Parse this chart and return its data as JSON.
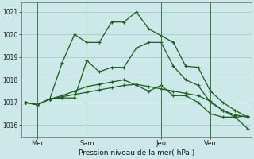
{
  "background_color": "#cce8e8",
  "grid_color": "#aacccc",
  "line_color": "#1a5c1a",
  "title": "Pression niveau de la mer( hPa )",
  "ylim": [
    1015.5,
    1021.4
  ],
  "yticks": [
    1016,
    1017,
    1018,
    1019,
    1020,
    1021
  ],
  "day_labels": [
    "Mer",
    "Sam",
    "Jeu",
    "Ven"
  ],
  "day_positions": [
    1,
    5,
    11,
    15
  ],
  "vline_positions": [
    1,
    5,
    11,
    15
  ],
  "n_points": 19,
  "series": [
    [
      1017.0,
      1016.9,
      1017.15,
      1018.75,
      1020.0,
      1019.65,
      1019.65,
      1020.55,
      1020.55,
      1021.0,
      1020.25,
      1019.95,
      1019.65,
      1018.6,
      1018.55,
      1017.5,
      1017.0,
      1016.65,
      1016.35
    ],
    [
      1017.0,
      1016.9,
      1017.15,
      1017.2,
      1017.2,
      1018.85,
      1018.35,
      1018.55,
      1018.55,
      1019.4,
      1019.65,
      1019.65,
      1018.6,
      1018.0,
      1017.75,
      1017.0,
      1016.65,
      1016.35,
      1015.85
    ],
    [
      1017.0,
      1016.9,
      1017.15,
      1017.3,
      1017.5,
      1017.7,
      1017.8,
      1017.9,
      1018.0,
      1017.75,
      1017.5,
      1017.75,
      1017.3,
      1017.3,
      1017.0,
      1016.5,
      1016.35,
      1016.35,
      1016.4
    ],
    [
      1017.0,
      1016.9,
      1017.15,
      1017.25,
      1017.35,
      1017.45,
      1017.55,
      1017.65,
      1017.75,
      1017.8,
      1017.7,
      1017.6,
      1017.5,
      1017.4,
      1017.3,
      1017.05,
      1016.65,
      1016.45,
      1016.35
    ]
  ]
}
